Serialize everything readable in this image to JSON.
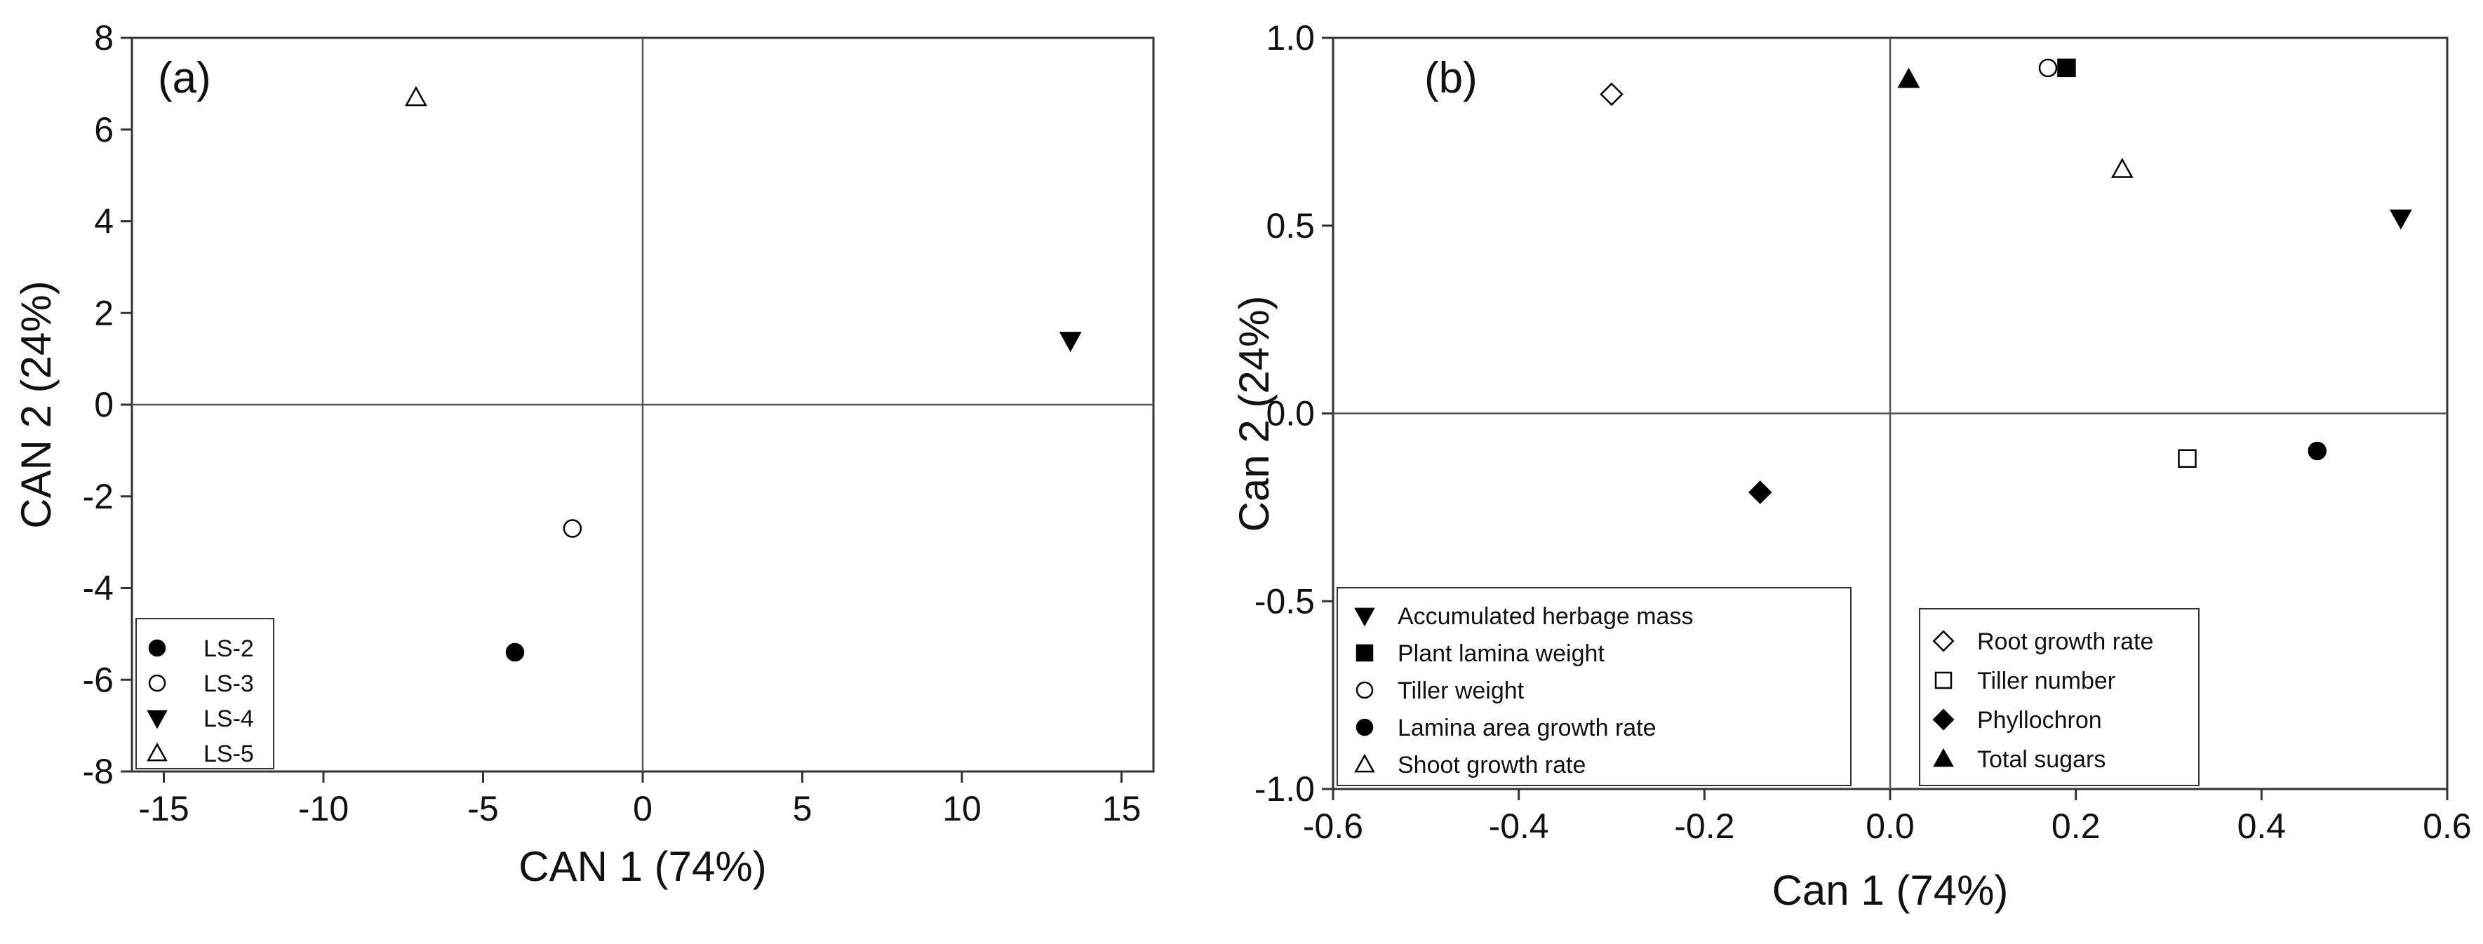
{
  "chart_data": [
    {
      "type": "scatter",
      "panel_label": "(a)",
      "xlabel": "CAN 1 (74%)",
      "ylabel": "CAN 2 (24%)",
      "xlim": [
        -16,
        16
      ],
      "ylim": [
        -8,
        8
      ],
      "xticks": [
        -15,
        -10,
        -5,
        0,
        5,
        10,
        15
      ],
      "yticks": [
        -8,
        -6,
        -4,
        -2,
        0,
        2,
        4,
        6,
        8
      ],
      "reference_lines": {
        "x": 0,
        "y": 0
      },
      "legend_position": "bottom-left",
      "series": [
        {
          "name": "LS-2",
          "marker": "circle-filled",
          "x": -4.0,
          "y": -5.4
        },
        {
          "name": "LS-3",
          "marker": "circle-open",
          "x": -2.2,
          "y": -2.7
        },
        {
          "name": "LS-4",
          "marker": "triangle-down-filled",
          "x": 13.4,
          "y": 1.4
        },
        {
          "name": "LS-5",
          "marker": "triangle-up-open",
          "x": -7.1,
          "y": 6.7
        }
      ]
    },
    {
      "type": "scatter",
      "panel_label": "(b)",
      "xlabel": "Can 1 (74%)",
      "ylabel": "Can 2 (24%)",
      "xlim": [
        -0.6,
        0.6
      ],
      "ylim": [
        -1.0,
        1.0
      ],
      "xticks": [
        -0.6,
        -0.4,
        -0.2,
        0.0,
        0.2,
        0.4,
        0.6
      ],
      "xtick_labels": [
        "-0.6",
        "-0.4",
        "-0.2",
        "0.0",
        "0.2",
        "0.4",
        "0.6"
      ],
      "yticks": [
        -1.0,
        -0.5,
        0.0,
        0.5,
        1.0
      ],
      "ytick_labels": [
        "-1.0",
        "-0.5",
        "0.0",
        "0.5",
        "1.0"
      ],
      "reference_lines": {
        "x": 0,
        "y": 0
      },
      "legend_position": "bottom (two boxes)",
      "legend_groups": [
        [
          "Accumulated herbage mass",
          "Plant lamina weight",
          "Tiller weight",
          "Lamina area growth rate",
          "Shoot growth rate"
        ],
        [
          "Root growth rate",
          "Tiller number",
          "Phyllochron",
          "Total sugars"
        ]
      ],
      "series": [
        {
          "name": "Accumulated herbage mass",
          "marker": "triangle-down-filled",
          "x": 0.55,
          "y": 0.52
        },
        {
          "name": "Plant lamina weight",
          "marker": "square-filled",
          "x": 0.19,
          "y": 0.92
        },
        {
          "name": "Tiller weight",
          "marker": "circle-open",
          "x": 0.17,
          "y": 0.92
        },
        {
          "name": "Lamina area growth rate",
          "marker": "circle-filled",
          "x": 0.46,
          "y": -0.1
        },
        {
          "name": "Shoot growth rate",
          "marker": "triangle-up-open",
          "x": 0.25,
          "y": 0.65
        },
        {
          "name": "Root growth rate",
          "marker": "diamond-open",
          "x": -0.3,
          "y": 0.85
        },
        {
          "name": "Tiller number",
          "marker": "square-open",
          "x": 0.32,
          "y": -0.12
        },
        {
          "name": "Phyllochron",
          "marker": "diamond-filled",
          "x": -0.14,
          "y": -0.21
        },
        {
          "name": "Total sugars",
          "marker": "triangle-up-filled",
          "x": 0.02,
          "y": 0.89
        }
      ]
    }
  ]
}
